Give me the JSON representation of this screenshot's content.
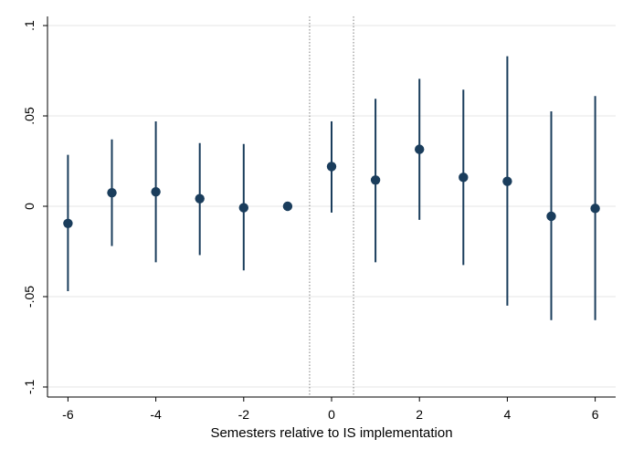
{
  "chart_data": {
    "type": "scatter",
    "title": "",
    "xlabel": "Semesters relative to IS implementation",
    "ylabel": "",
    "xlim": [
      -6.6,
      6.5
    ],
    "ylim": [
      -0.105,
      0.105
    ],
    "x_ticks": [
      -6,
      -4,
      -2,
      0,
      2,
      4,
      6
    ],
    "x_tick_labels": [
      "-6",
      "-4",
      "-2",
      "0",
      "2",
      "4",
      "6"
    ],
    "y_ticks": [
      -0.1,
      -0.05,
      0,
      0.05,
      0.1
    ],
    "y_tick_labels": [
      "-.1",
      "-.05",
      "0",
      ".05",
      ".1"
    ],
    "grid": "horizontal",
    "reference_lines_x": [
      -0.5,
      0.5
    ],
    "marker_color": "#1a3d5c",
    "series": [
      {
        "x": [
          -6,
          -5,
          -4,
          -3,
          -2,
          -1,
          0,
          1,
          2,
          3,
          4,
          5,
          6
        ],
        "y": [
          -0.0095,
          0.0075,
          0.008,
          0.0042,
          -0.0008,
          0.0,
          0.022,
          0.0145,
          0.0315,
          0.016,
          0.0138,
          -0.0055,
          -0.0012
        ],
        "ci_low": [
          -0.047,
          -0.022,
          -0.031,
          -0.027,
          -0.0355,
          0.0,
          -0.0035,
          -0.031,
          -0.0075,
          -0.0325,
          -0.055,
          -0.063,
          -0.063
        ],
        "ci_high": [
          0.0285,
          0.037,
          0.047,
          0.035,
          0.0345,
          0.0,
          0.047,
          0.0595,
          0.0705,
          0.0645,
          0.083,
          0.0525,
          0.061
        ]
      }
    ]
  }
}
